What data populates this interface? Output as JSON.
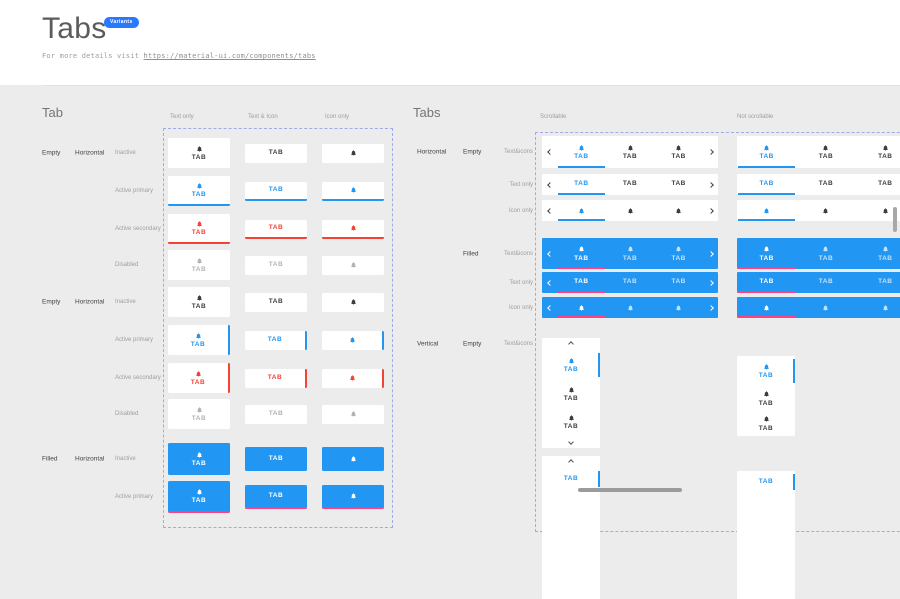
{
  "header": {
    "title": "Tabs",
    "badge": "Variants",
    "link_prefix": "For more details visit ",
    "link": "https://material-ui.com/components/tabs"
  },
  "colors": {
    "primary": "#2196F3",
    "secondary": "#F44336",
    "filled_indicator": "#FF4081",
    "badge": "#2979FF",
    "bg": "#ECECEC",
    "surface": "#FFFFFF",
    "dashed": "#A0AAE8",
    "text_dark": "#3E3E3E",
    "text_disabled": "#B3B3B3"
  },
  "tab_section": {
    "title": "Tab",
    "columns": [
      "Text only",
      "Text & Icon",
      "Icon only"
    ],
    "tab_label": "TAB",
    "icon": "bell-icon",
    "groups": [
      {
        "type": "Empty",
        "orientation": "Horizontal",
        "filled": false,
        "indicator": "bottom",
        "states": [
          "Inactive",
          "Active primary",
          "Active secondary",
          "Disabled"
        ]
      },
      {
        "type": "Empty",
        "orientation": "Horizontal",
        "filled": false,
        "indicator": "right",
        "states": [
          "Inactive",
          "Active primary",
          "Active secondary",
          "Disabled"
        ]
      },
      {
        "type": "Filled",
        "orientation": "Horizontal",
        "filled": true,
        "indicator": "bottom",
        "states": [
          "Inactive",
          "Active primary"
        ]
      }
    ]
  },
  "tabs_section": {
    "title": "Tabs",
    "columns": [
      "Scrollable",
      "Not scrollable"
    ],
    "tab_label": "TAB",
    "horizontal_rows": [
      {
        "group": "Horizontal",
        "subgroup": "Empty",
        "label": "Text&icons",
        "content": "both",
        "filled": false
      },
      {
        "label": "Text only",
        "content": "text",
        "filled": false
      },
      {
        "label": "Icon only",
        "content": "icon",
        "filled": false
      },
      {
        "subgroup": "Filled",
        "label": "Text&icons",
        "content": "both",
        "filled": true
      },
      {
        "label": "Text only",
        "content": "text",
        "filled": true
      },
      {
        "label": "Icon only",
        "content": "icon",
        "filled": true
      }
    ],
    "vertical_rows": [
      {
        "group": "Vertical",
        "subgroup": "Empty",
        "label": "Text&icons",
        "content": "both"
      },
      {
        "content": "text"
      }
    ]
  }
}
